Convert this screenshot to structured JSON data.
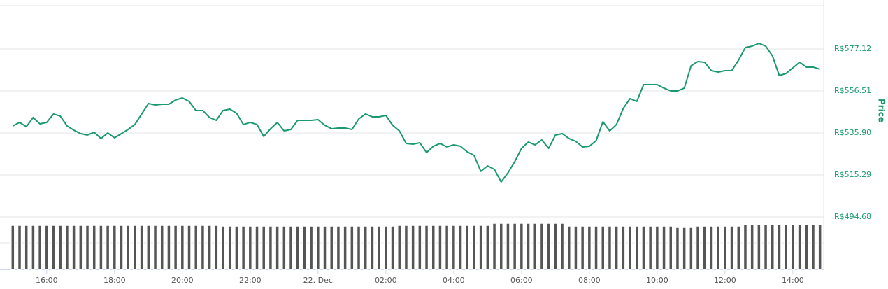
{
  "chart_data": {
    "type": "line",
    "ylabel": "Price",
    "color": "#1a9a6c",
    "volume_color": "#555555",
    "grid": true,
    "xlim": [
      14.87,
      38.91
    ],
    "xticks": [
      {
        "value": 16,
        "label": "16:00"
      },
      {
        "value": 18,
        "label": "18:00"
      },
      {
        "value": 20,
        "label": "20:00"
      },
      {
        "value": 22,
        "label": "22:00"
      },
      {
        "value": 24,
        "label": "22. Dec"
      },
      {
        "value": 26,
        "label": "02:00"
      },
      {
        "value": 28,
        "label": "04:00"
      },
      {
        "value": 30,
        "label": "06:00"
      },
      {
        "value": 32,
        "label": "08:00"
      },
      {
        "value": 34,
        "label": "10:00"
      },
      {
        "value": 36,
        "label": "12:00"
      },
      {
        "value": 38,
        "label": "14:00"
      }
    ],
    "ylim": [
      494.68,
      597.73
    ],
    "yticks": [
      {
        "value": 494.68,
        "label": "R$494.68"
      },
      {
        "value": 515.29,
        "label": "R$515.29"
      },
      {
        "value": 535.9,
        "label": "R$535.90"
      },
      {
        "value": 556.51,
        "label": "R$556.51"
      },
      {
        "value": 577.12,
        "label": "R$577.12"
      }
    ],
    "volume_ylim": [
      0,
      70
    ],
    "x": [
      15,
      15.2,
      15.4,
      15.6,
      15.8,
      16,
      16.2,
      16.4,
      16.6,
      16.8,
      17,
      17.2,
      17.4,
      17.6,
      17.8,
      18,
      18.2,
      18.4,
      18.6,
      18.8,
      19,
      19.2,
      19.4,
      19.6,
      19.8,
      20,
      20.2,
      20.4,
      20.6,
      20.8,
      21,
      21.2,
      21.4,
      21.6,
      21.8,
      22,
      22.2,
      22.4,
      22.6,
      22.8,
      23,
      23.2,
      23.4,
      23.6,
      23.8,
      24,
      24.2,
      24.4,
      24.6,
      24.8,
      25,
      25.2,
      25.4,
      25.6,
      25.8,
      26,
      26.2,
      26.4,
      26.6,
      26.8,
      27,
      27.2,
      27.4,
      27.6,
      27.8,
      28,
      28.2,
      28.4,
      28.6,
      28.8,
      29,
      29.2,
      29.4,
      29.6,
      29.8,
      30,
      30.2,
      30.4,
      30.6,
      30.8,
      31,
      31.2,
      31.4,
      31.6,
      31.8,
      32,
      32.2,
      32.4,
      32.6,
      32.8,
      33,
      33.2,
      33.4,
      33.6,
      33.8,
      34,
      34.2,
      34.4,
      34.6,
      34.8,
      35,
      35.2,
      35.4,
      35.6,
      35.8,
      36,
      36.2,
      36.4,
      36.6,
      36.8,
      37,
      37.2,
      37.4,
      37.6,
      37.8,
      38,
      38.2,
      38.4,
      38.6,
      38.8
    ],
    "values": [
      539.34,
      541.06,
      539.0,
      543.46,
      540.37,
      541.06,
      545.18,
      544.15,
      539.34,
      537.28,
      535.56,
      534.87,
      536.25,
      533.16,
      535.91,
      533.5,
      535.56,
      537.62,
      540.03,
      545.18,
      550.33,
      549.65,
      549.99,
      549.99,
      552.05,
      553.08,
      551.36,
      546.9,
      546.9,
      543.46,
      542.09,
      546.9,
      547.58,
      545.52,
      540.03,
      541.06,
      540.03,
      534.19,
      537.97,
      541.06,
      536.94,
      537.62,
      542.09,
      542.09,
      542.09,
      542.43,
      539.68,
      537.97,
      538.31,
      538.31,
      537.62,
      542.77,
      545.18,
      543.81,
      543.81,
      544.49,
      539.68,
      536.94,
      530.75,
      530.41,
      531.1,
      526.29,
      529.38,
      530.75,
      529.04,
      530.07,
      529.38,
      526.63,
      524.91,
      517.07,
      519.76,
      518.04,
      511.86,
      516.33,
      521.82,
      528.35,
      531.44,
      530.07,
      532.47,
      528.35,
      534.87,
      535.56,
      533.16,
      531.78,
      529.04,
      529.38,
      532.13,
      541.4,
      536.94,
      540.03,
      547.93,
      552.74,
      551.36,
      559.6,
      559.6,
      559.6,
      557.89,
      556.52,
      556.52,
      557.89,
      568.88,
      570.94,
      570.6,
      566.48,
      565.79,
      566.48,
      566.48,
      571.63,
      577.81,
      578.5,
      579.87,
      578.5,
      573.69,
      564.07,
      565.1,
      567.85,
      570.6,
      568.2,
      568.2,
      567.17
    ],
    "volume": [
      63,
      63,
      63,
      63,
      63,
      63,
      63,
      63,
      63,
      63,
      63,
      63,
      63,
      63,
      63,
      63,
      63,
      63,
      63,
      63,
      63,
      63,
      63,
      63,
      63,
      63,
      63,
      63,
      63,
      63,
      63,
      62,
      62,
      62,
      62,
      62,
      62,
      62,
      62,
      62,
      62,
      62,
      62,
      62,
      62,
      62,
      62,
      62,
      62,
      62,
      62,
      62,
      62,
      62,
      62,
      62,
      62,
      63,
      63,
      63,
      63,
      63,
      63,
      63,
      63,
      63,
      63,
      63,
      63,
      63,
      63,
      66,
      66,
      66,
      66,
      66,
      66,
      66,
      66,
      66,
      66,
      66,
      62,
      62,
      62,
      62,
      62,
      62,
      62,
      62,
      62,
      62,
      62,
      62,
      62,
      62,
      62,
      62,
      60,
      60,
      60,
      62,
      62,
      62,
      62,
      62,
      62,
      62,
      64,
      64,
      64,
      64,
      64,
      64,
      64,
      64,
      64,
      64,
      64,
      64
    ]
  }
}
